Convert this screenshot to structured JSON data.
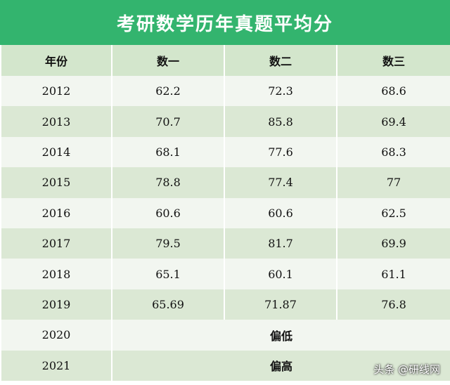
{
  "title": "考研数学历年真题平均分",
  "table": {
    "header": [
      "年份",
      "数一",
      "数二",
      "数三"
    ],
    "rows": [
      [
        "2012",
        "62.2",
        "72.3",
        "68.6"
      ],
      [
        "2013",
        "70.7",
        "85.8",
        "69.4"
      ],
      [
        "2014",
        "68.1",
        "77.6",
        "68.3"
      ],
      [
        "2015",
        "78.8",
        "77.4",
        "77"
      ],
      [
        "2016",
        "60.6",
        "60.6",
        "62.5"
      ],
      [
        "2017",
        "79.5",
        "81.7",
        "69.9"
      ],
      [
        "2018",
        "65.1",
        "60.1",
        "61.1"
      ],
      [
        "2019",
        "65.69",
        "71.87",
        "76.8"
      ],
      [
        "2020",
        "偏低"
      ],
      [
        "2021",
        "偏高"
      ]
    ]
  },
  "footer": "头条 @研线网"
}
